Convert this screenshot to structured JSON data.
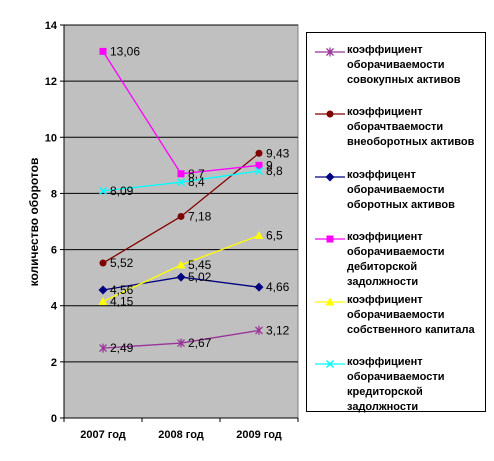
{
  "chart_data": {
    "type": "line",
    "categories": [
      "2007 год",
      "2008 год",
      "2009 год"
    ],
    "ylabel": "количество оборотов",
    "xlabel": "",
    "ylim": [
      0,
      14
    ],
    "yticks": [
      "0",
      "2",
      "4",
      "6",
      "8",
      "10",
      "12",
      "14"
    ],
    "grid": true,
    "legend_position": "right",
    "plot_background": "#c0c0c0",
    "series": [
      {
        "name": "коэффициент оборачиваемости совокупных активов",
        "values": [
          2.49,
          2.67,
          3.12
        ],
        "labels": [
          "2,49",
          "2,67",
          "3,12"
        ],
        "color": "#993399",
        "marker": "star"
      },
      {
        "name": "коэффициент оборачтваемости внеоборотных активов",
        "values": [
          5.52,
          7.18,
          9.43
        ],
        "labels": [
          "5,52",
          "7,18",
          "9,43"
        ],
        "color": "#800000",
        "marker": "circle"
      },
      {
        "name": "коэффицент оборачиваемости оборотных активов",
        "values": [
          4.56,
          5.02,
          4.66
        ],
        "labels": [
          "4,56",
          "5,02",
          "4,66"
        ],
        "color": "#000080",
        "marker": "diamond"
      },
      {
        "name": "коэффициент оборачиваемости дебиторской задолжности",
        "values": [
          13.06,
          8.7,
          9
        ],
        "labels": [
          "13,06",
          "8,7",
          "9"
        ],
        "color": "#ff00ff",
        "marker": "square"
      },
      {
        "name": "коэффициент оборачиваемости собственного капитала",
        "values": [
          4.15,
          5.45,
          6.5
        ],
        "labels": [
          "4,15",
          "5,45",
          "6,5"
        ],
        "color": "#ffff00",
        "marker": "triangle"
      },
      {
        "name": "коэффициент оборачиваемости кредиторской задолжности",
        "values": [
          8.09,
          8.4,
          8.8
        ],
        "labels": [
          "8,09",
          "8,4",
          "8,8"
        ],
        "color": "#00ffff",
        "marker": "x"
      }
    ]
  }
}
